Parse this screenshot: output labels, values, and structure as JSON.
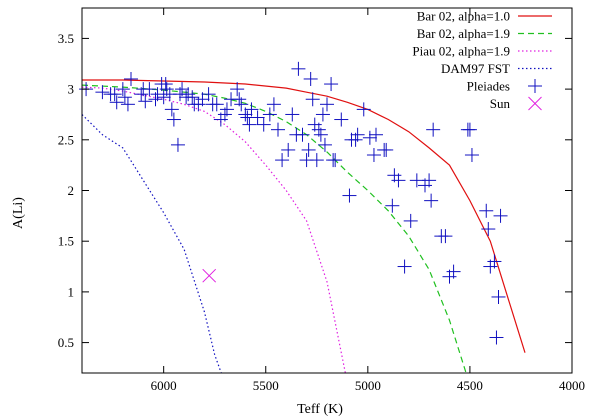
{
  "chart_data": {
    "type": "line",
    "title": "",
    "xlabel": "Teff  (K)",
    "ylabel": "A(Li)",
    "xlim": [
      6400,
      4000
    ],
    "ylim": [
      0.2,
      3.8
    ],
    "x_reversed": true,
    "x_ticks": [
      6000,
      5500,
      5000,
      4500,
      4000
    ],
    "x_tick_labels": [
      "6000",
      "5500",
      "5000",
      "4500",
      "4000"
    ],
    "y_ticks": [
      0.5,
      1,
      1.5,
      2,
      2.5,
      3,
      3.5
    ],
    "y_tick_labels": [
      "0.5",
      "1",
      "1.5",
      "2",
      "2.5",
      "3",
      "3.5"
    ],
    "grid": false,
    "legend_position": "top-right",
    "series": [
      {
        "name": "Bar 02, alpha=1.0",
        "kind": "line",
        "style": "solid",
        "color": "#e01010",
        "x": [
          6400,
          6200,
          6000,
          5800,
          5600,
          5400,
          5300,
          5200,
          5100,
          5000,
          4900,
          4800,
          4700,
          4600,
          4500,
          4400,
          4300,
          4230
        ],
        "y": [
          3.09,
          3.09,
          3.08,
          3.07,
          3.05,
          3.01,
          2.97,
          2.93,
          2.87,
          2.8,
          2.7,
          2.58,
          2.42,
          2.25,
          1.9,
          1.5,
          0.85,
          0.4
        ]
      },
      {
        "name": "Bar 02, alpha=1.9",
        "kind": "line",
        "style": "dashed",
        "color": "#20c020",
        "x": [
          6400,
          6200,
          6000,
          5800,
          5700,
          5600,
          5500,
          5400,
          5300,
          5200,
          5100,
          5000,
          4900,
          4800,
          4700,
          4600,
          4500
        ],
        "y": [
          3.04,
          3.02,
          2.99,
          2.95,
          2.91,
          2.86,
          2.78,
          2.68,
          2.55,
          2.38,
          2.18,
          2.0,
          1.8,
          1.55,
          1.22,
          0.72,
          0.08
        ]
      },
      {
        "name": "Piau 02, alpha=1.9",
        "kind": "line",
        "style": "dotted",
        "color": "#e020e0",
        "x": [
          6400,
          6300,
          6200,
          6100,
          6000,
          5900,
          5800,
          5700,
          5600,
          5500,
          5400,
          5300,
          5200,
          5150,
          5100
        ],
        "y": [
          3.02,
          3.01,
          2.98,
          2.94,
          2.9,
          2.85,
          2.78,
          2.65,
          2.48,
          2.25,
          2.0,
          1.7,
          1.1,
          0.6,
          0.1
        ]
      },
      {
        "name": "DAM97 FST",
        "kind": "line",
        "style": "dotted",
        "color": "#1010c0",
        "x": [
          6400,
          6300,
          6200,
          6100,
          6000,
          5900,
          5800,
          5750,
          5700
        ],
        "y": [
          2.75,
          2.55,
          2.42,
          2.1,
          1.78,
          1.42,
          0.8,
          0.38,
          0.1
        ]
      },
      {
        "name": "Pleiades",
        "kind": "scatter",
        "marker": "plus",
        "color": "#1010c0",
        "x": [
          6380,
          6300,
          6260,
          6240,
          6230,
          6200,
          6190,
          6175,
          6160,
          6110,
          6100,
          6090,
          6070,
          6040,
          6030,
          6010,
          6000,
          5990,
          5985,
          5970,
          5960,
          5950,
          5930,
          5920,
          5910,
          5890,
          5880,
          5860,
          5850,
          5830,
          5810,
          5780,
          5760,
          5740,
          5720,
          5700,
          5690,
          5670,
          5640,
          5630,
          5620,
          5600,
          5590,
          5580,
          5570,
          5540,
          5510,
          5480,
          5460,
          5440,
          5420,
          5390,
          5370,
          5350,
          5340,
          5320,
          5300,
          5290,
          5280,
          5270,
          5260,
          5250,
          5240,
          5230,
          5220,
          5210,
          5200,
          5180,
          5170,
          5160,
          5130,
          5090,
          5080,
          5060,
          5050,
          5020,
          4990,
          4970,
          4960,
          4920,
          4910,
          4880,
          4870,
          4850,
          4820,
          4790,
          4760,
          4720,
          4700,
          4690,
          4680,
          4640,
          4620,
          4600,
          4580,
          4510,
          4500,
          4490,
          4420,
          4410,
          4400,
          4380,
          4370,
          4360,
          4350
        ],
        "y": [
          3.0,
          2.97,
          2.95,
          2.95,
          2.87,
          3.0,
          2.92,
          2.85,
          3.1,
          2.95,
          3.0,
          2.88,
          3.0,
          2.9,
          2.95,
          3.05,
          2.92,
          3.05,
          3.0,
          2.95,
          2.8,
          2.7,
          2.45,
          2.95,
          3.0,
          2.92,
          2.95,
          2.92,
          2.85,
          2.85,
          2.9,
          2.95,
          2.85,
          2.85,
          2.7,
          2.75,
          2.8,
          2.9,
          3.0,
          2.9,
          2.85,
          2.75,
          2.72,
          2.65,
          2.8,
          2.72,
          2.65,
          2.75,
          2.85,
          2.6,
          2.3,
          2.4,
          2.75,
          2.55,
          3.2,
          2.55,
          2.3,
          2.4,
          3.1,
          2.9,
          2.65,
          2.3,
          2.6,
          2.55,
          2.75,
          2.45,
          2.85,
          3.05,
          2.3,
          2.3,
          2.7,
          1.95,
          2.5,
          2.5,
          2.55,
          2.8,
          2.52,
          2.35,
          2.55,
          2.4,
          2.4,
          1.85,
          2.15,
          2.1,
          1.25,
          1.7,
          2.1,
          2.05,
          2.1,
          1.9,
          2.6,
          1.55,
          1.55,
          1.15,
          1.2,
          2.6,
          2.6,
          2.35,
          1.8,
          1.62,
          1.25,
          1.3,
          0.55,
          0.95,
          1.75
        ],
        "note": ""
      },
      {
        "name": "Sun",
        "kind": "scatter",
        "marker": "cross",
        "color": "#e020e0",
        "x": [
          5777
        ],
        "y": [
          1.16
        ]
      }
    ]
  }
}
